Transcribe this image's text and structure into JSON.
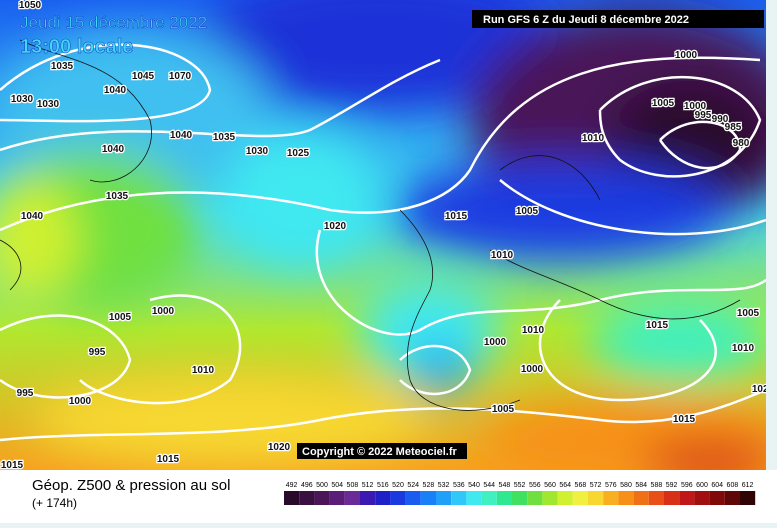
{
  "header": {
    "date": "Jeudi 15 décembre 2022",
    "time": "13:00 locale",
    "run": "Run GFS 6 Z du Jeudi 8 décembre 2022",
    "copyright": "Copyright © 2022 Meteociel.fr"
  },
  "isobar_labels": [
    "1050",
    "1035",
    "1030",
    "1030",
    "1045",
    "1070",
    "1040",
    "1040",
    "1035",
    "1030",
    "1025",
    "1040",
    "1035",
    "1040",
    "1020",
    "1015",
    "1005",
    "1010",
    "1000",
    "1005",
    "1000",
    "995",
    "990",
    "985",
    "980",
    "1010",
    "1005",
    "1000",
    "995",
    "995",
    "1000",
    "1010",
    "1010",
    "1000",
    "1000",
    "1015",
    "1005",
    "1010",
    "1005",
    "1015",
    "1020",
    "1015",
    "1015",
    "1020"
  ],
  "footer": {
    "title": "Géop. Z500 & pression au sol",
    "lead": "(+ 174h)"
  },
  "scale": {
    "labels": [
      "492",
      "496",
      "500",
      "504",
      "508",
      "512",
      "516",
      "520",
      "524",
      "528",
      "532",
      "536",
      "540",
      "544",
      "548",
      "552",
      "556",
      "560",
      "564",
      "568",
      "572",
      "576",
      "580",
      "584",
      "588",
      "592",
      "596",
      "600",
      "604",
      "608",
      "612"
    ],
    "colors": [
      "#2a0a2a",
      "#3a1040",
      "#4a1658",
      "#5a1e78",
      "#6a2a98",
      "#3a1ab0",
      "#2020c8",
      "#1a3ae0",
      "#1a5cf0",
      "#1a80f8",
      "#20a0f8",
      "#30c8f8",
      "#40e8f0",
      "#40f0c0",
      "#30e890",
      "#40e060",
      "#70e040",
      "#a0e830",
      "#d0f030",
      "#f0f040",
      "#f8d830",
      "#f8b020",
      "#f89018",
      "#f07018",
      "#e85018",
      "#d83018",
      "#c01818",
      "#a01010",
      "#800a0a",
      "#600808",
      "#300404"
    ]
  }
}
